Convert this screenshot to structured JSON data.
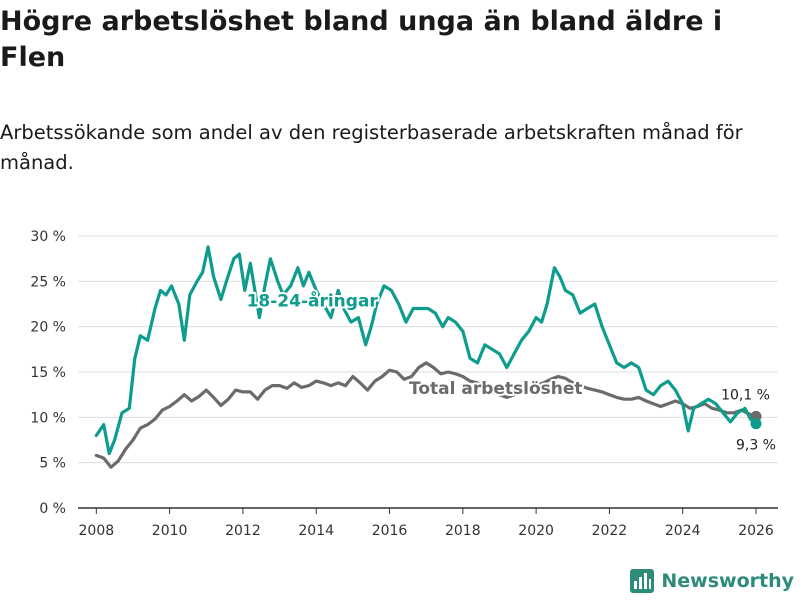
{
  "page": {
    "title": "Högre arbetslöshet bland unga än bland äldre i Flen",
    "subtitle": "Arbetssökande som andel av den registerbaserade arbetskraften månad för månad.",
    "brand": "Newsworthy"
  },
  "colors": {
    "youth": "#0e9c8d",
    "total": "#6b6b6b",
    "grid": "#dddddd",
    "axis": "#333333",
    "brand": "#2e8b7a"
  },
  "chart_data": {
    "type": "line",
    "title": "Högre arbetslöshet bland unga än bland äldre i Flen",
    "xlabel": "",
    "ylabel": "",
    "xlim": [
      2007.5,
      2026.6
    ],
    "ylim": [
      0,
      30
    ],
    "yticks": [
      0,
      5,
      10,
      15,
      20,
      25,
      30
    ],
    "ytick_labels": [
      "0 %",
      "5 %",
      "10 %",
      "15 %",
      "20 %",
      "25 %",
      "30 %"
    ],
    "xticks": [
      2008,
      2010,
      2012,
      2014,
      2016,
      2018,
      2020,
      2022,
      2024,
      2026
    ],
    "xtick_labels": [
      "2008",
      "2010",
      "2012",
      "2014",
      "2016",
      "2018",
      "2020",
      "2022",
      "2024",
      "2026"
    ],
    "grid": true,
    "series": [
      {
        "name": "18-24-åringar",
        "label": "18-24-åringar",
        "color": "#0e9c8d",
        "end_label": "9,3 %",
        "points": [
          [
            2008.0,
            8.0
          ],
          [
            2008.2,
            9.2
          ],
          [
            2008.35,
            6.0
          ],
          [
            2008.5,
            7.5
          ],
          [
            2008.7,
            10.5
          ],
          [
            2008.9,
            11.0
          ],
          [
            2009.05,
            16.5
          ],
          [
            2009.2,
            19.0
          ],
          [
            2009.4,
            18.5
          ],
          [
            2009.6,
            22.0
          ],
          [
            2009.75,
            24.0
          ],
          [
            2009.9,
            23.5
          ],
          [
            2010.05,
            24.5
          ],
          [
            2010.25,
            22.5
          ],
          [
            2010.4,
            18.5
          ],
          [
            2010.55,
            23.5
          ],
          [
            2010.75,
            25.0
          ],
          [
            2010.9,
            26.0
          ],
          [
            2011.05,
            28.8
          ],
          [
            2011.2,
            25.5
          ],
          [
            2011.4,
            23.0
          ],
          [
            2011.55,
            25.0
          ],
          [
            2011.75,
            27.5
          ],
          [
            2011.9,
            28.0
          ],
          [
            2012.05,
            24.0
          ],
          [
            2012.2,
            27.0
          ],
          [
            2012.45,
            21.0
          ],
          [
            2012.6,
            24.5
          ],
          [
            2012.75,
            27.5
          ],
          [
            2012.95,
            25.0
          ],
          [
            2013.1,
            23.5
          ],
          [
            2013.3,
            24.5
          ],
          [
            2013.5,
            26.5
          ],
          [
            2013.65,
            24.5
          ],
          [
            2013.8,
            26.0
          ],
          [
            2014.0,
            24.0
          ],
          [
            2014.2,
            22.5
          ],
          [
            2014.4,
            21.0
          ],
          [
            2014.6,
            24.0
          ],
          [
            2014.75,
            22.0
          ],
          [
            2014.95,
            20.5
          ],
          [
            2015.15,
            21.0
          ],
          [
            2015.35,
            18.0
          ],
          [
            2015.5,
            20.0
          ],
          [
            2015.65,
            22.5
          ],
          [
            2015.85,
            24.5
          ],
          [
            2016.05,
            24.0
          ],
          [
            2016.25,
            22.5
          ],
          [
            2016.45,
            20.5
          ],
          [
            2016.65,
            22.0
          ],
          [
            2016.85,
            22.0
          ],
          [
            2017.05,
            22.0
          ],
          [
            2017.25,
            21.5
          ],
          [
            2017.45,
            20.0
          ],
          [
            2017.6,
            21.0
          ],
          [
            2017.8,
            20.5
          ],
          [
            2018.0,
            19.5
          ],
          [
            2018.2,
            16.5
          ],
          [
            2018.4,
            16.0
          ],
          [
            2018.6,
            18.0
          ],
          [
            2018.8,
            17.5
          ],
          [
            2019.0,
            17.0
          ],
          [
            2019.2,
            15.5
          ],
          [
            2019.4,
            17.0
          ],
          [
            2019.6,
            18.5
          ],
          [
            2019.8,
            19.5
          ],
          [
            2020.0,
            21.0
          ],
          [
            2020.15,
            20.5
          ],
          [
            2020.3,
            22.5
          ],
          [
            2020.5,
            26.5
          ],
          [
            2020.65,
            25.5
          ],
          [
            2020.8,
            24.0
          ],
          [
            2021.0,
            23.5
          ],
          [
            2021.2,
            21.5
          ],
          [
            2021.4,
            22.0
          ],
          [
            2021.6,
            22.5
          ],
          [
            2021.8,
            20.0
          ],
          [
            2022.0,
            18.0
          ],
          [
            2022.2,
            16.0
          ],
          [
            2022.4,
            15.5
          ],
          [
            2022.6,
            16.0
          ],
          [
            2022.8,
            15.5
          ],
          [
            2023.0,
            13.0
          ],
          [
            2023.2,
            12.5
          ],
          [
            2023.4,
            13.5
          ],
          [
            2023.6,
            14.0
          ],
          [
            2023.8,
            13.0
          ],
          [
            2024.0,
            11.5
          ],
          [
            2024.15,
            8.5
          ],
          [
            2024.3,
            11.0
          ],
          [
            2024.5,
            11.5
          ],
          [
            2024.7,
            12.0
          ],
          [
            2024.9,
            11.5
          ],
          [
            2025.1,
            10.5
          ],
          [
            2025.3,
            9.5
          ],
          [
            2025.5,
            10.5
          ],
          [
            2025.7,
            11.0
          ],
          [
            2025.85,
            9.8
          ],
          [
            2026.0,
            9.3
          ]
        ]
      },
      {
        "name": "Total arbetslöshet",
        "label": "Total arbetslöshet",
        "color": "#6b6b6b",
        "end_label": "10,1 %",
        "points": [
          [
            2008.0,
            5.8
          ],
          [
            2008.2,
            5.5
          ],
          [
            2008.4,
            4.5
          ],
          [
            2008.6,
            5.2
          ],
          [
            2008.8,
            6.5
          ],
          [
            2009.0,
            7.5
          ],
          [
            2009.2,
            8.8
          ],
          [
            2009.4,
            9.2
          ],
          [
            2009.6,
            9.8
          ],
          [
            2009.8,
            10.8
          ],
          [
            2010.0,
            11.2
          ],
          [
            2010.2,
            11.8
          ],
          [
            2010.4,
            12.5
          ],
          [
            2010.6,
            11.8
          ],
          [
            2010.8,
            12.3
          ],
          [
            2011.0,
            13.0
          ],
          [
            2011.2,
            12.2
          ],
          [
            2011.4,
            11.3
          ],
          [
            2011.6,
            12.0
          ],
          [
            2011.8,
            13.0
          ],
          [
            2012.0,
            12.8
          ],
          [
            2012.2,
            12.8
          ],
          [
            2012.4,
            12.0
          ],
          [
            2012.6,
            13.0
          ],
          [
            2012.8,
            13.5
          ],
          [
            2013.0,
            13.5
          ],
          [
            2013.2,
            13.2
          ],
          [
            2013.4,
            13.8
          ],
          [
            2013.6,
            13.3
          ],
          [
            2013.8,
            13.5
          ],
          [
            2014.0,
            14.0
          ],
          [
            2014.2,
            13.8
          ],
          [
            2014.4,
            13.5
          ],
          [
            2014.6,
            13.8
          ],
          [
            2014.8,
            13.5
          ],
          [
            2015.0,
            14.5
          ],
          [
            2015.2,
            13.8
          ],
          [
            2015.4,
            13.0
          ],
          [
            2015.6,
            14.0
          ],
          [
            2015.8,
            14.5
          ],
          [
            2016.0,
            15.2
          ],
          [
            2016.2,
            15.0
          ],
          [
            2016.4,
            14.2
          ],
          [
            2016.6,
            14.5
          ],
          [
            2016.8,
            15.5
          ],
          [
            2017.0,
            16.0
          ],
          [
            2017.2,
            15.5
          ],
          [
            2017.4,
            14.8
          ],
          [
            2017.6,
            15.0
          ],
          [
            2017.8,
            14.8
          ],
          [
            2018.0,
            14.5
          ],
          [
            2018.2,
            14.0
          ],
          [
            2018.4,
            13.8
          ],
          [
            2018.6,
            13.0
          ],
          [
            2018.8,
            12.8
          ],
          [
            2019.0,
            12.5
          ],
          [
            2019.2,
            12.2
          ],
          [
            2019.4,
            12.5
          ],
          [
            2019.6,
            12.8
          ],
          [
            2019.8,
            13.2
          ],
          [
            2020.0,
            13.5
          ],
          [
            2020.2,
            13.8
          ],
          [
            2020.4,
            14.2
          ],
          [
            2020.6,
            14.5
          ],
          [
            2020.8,
            14.3
          ],
          [
            2021.0,
            13.8
          ],
          [
            2021.2,
            13.5
          ],
          [
            2021.4,
            13.2
          ],
          [
            2021.6,
            13.0
          ],
          [
            2021.8,
            12.8
          ],
          [
            2022.0,
            12.5
          ],
          [
            2022.2,
            12.2
          ],
          [
            2022.4,
            12.0
          ],
          [
            2022.6,
            12.0
          ],
          [
            2022.8,
            12.2
          ],
          [
            2023.0,
            11.8
          ],
          [
            2023.2,
            11.5
          ],
          [
            2023.4,
            11.2
          ],
          [
            2023.6,
            11.5
          ],
          [
            2023.8,
            11.8
          ],
          [
            2024.0,
            11.5
          ],
          [
            2024.2,
            11.0
          ],
          [
            2024.4,
            11.2
          ],
          [
            2024.6,
            11.5
          ],
          [
            2024.8,
            11.0
          ],
          [
            2025.0,
            10.8
          ],
          [
            2025.2,
            10.5
          ],
          [
            2025.4,
            10.5
          ],
          [
            2025.6,
            10.8
          ],
          [
            2025.8,
            10.4
          ],
          [
            2026.0,
            10.1
          ]
        ]
      }
    ]
  }
}
